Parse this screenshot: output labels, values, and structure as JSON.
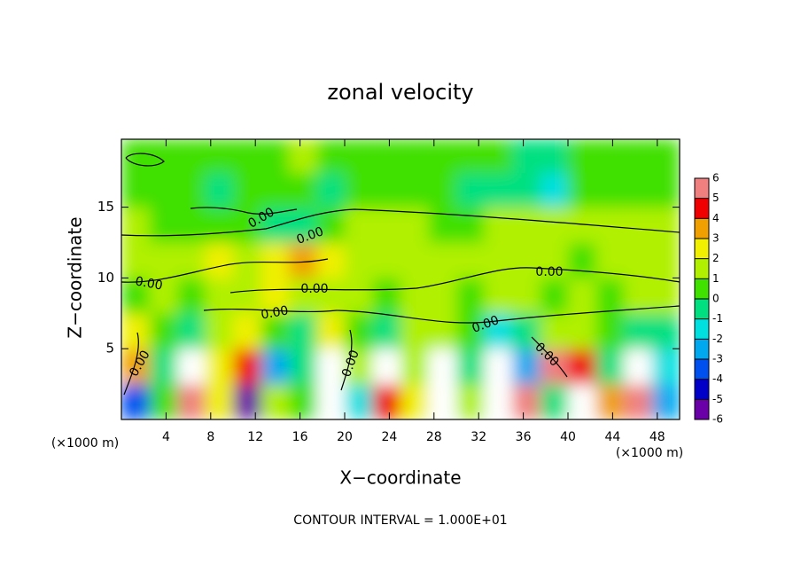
{
  "chart_data": {
    "type": "contourf",
    "title": "zonal velocity",
    "x_label": "X−coordinate",
    "y_label": "Z−coordinate",
    "x_unit": "(×1000 m)",
    "y_unit": "(×1000 m)",
    "note": "CONTOUR INTERVAL = 1.000E+01",
    "annotations": [
      "0.00",
      "0.00",
      "0.00",
      "0.00",
      "0.00",
      "0.00",
      "0.00",
      "0.00",
      "0.00",
      "0.00"
    ],
    "xlim": [
      0,
      50
    ],
    "ylim": [
      0,
      19.8
    ],
    "xticks": [
      4,
      8,
      12,
      16,
      20,
      24,
      28,
      32,
      36,
      40,
      44,
      48
    ],
    "yticks": [
      5,
      10,
      15
    ],
    "zticks": [
      -6,
      -5,
      -4,
      -3,
      -2,
      -1,
      0,
      1,
      2,
      3,
      4,
      5,
      6
    ],
    "colors": [
      "#6a00a8",
      "#0000c8",
      "#0050f0",
      "#00a8f0",
      "#00e0e0",
      "#00e080",
      "#40e000",
      "#b0f000",
      "#f0f000",
      "#f0a000",
      "#f00000",
      "#f08080"
    ],
    "out_of_range_color": "#ffffff",
    "x": [
      1.25,
      3.75,
      6.25,
      8.75,
      11.25,
      13.75,
      16.25,
      18.75,
      21.25,
      23.75,
      26.25,
      28.75,
      31.25,
      33.75,
      36.25,
      38.75,
      41.25,
      43.75,
      46.25,
      48.75
    ],
    "y": [
      1.25,
      3.75,
      6.25,
      8.75,
      11.25,
      13.75,
      16.25,
      18.65
    ],
    "z": [
      [
        -4,
        0,
        5,
        2,
        -6,
        1,
        0,
        -7,
        -2,
        4,
        2,
        -7,
        1,
        7,
        5,
        -1,
        -7,
        3,
        5,
        -3
      ],
      [
        3,
        -1,
        -7,
        2,
        4,
        -3,
        -1,
        8,
        1,
        -7,
        1,
        7,
        -1,
        -8,
        -3,
        6,
        4,
        -1,
        -7,
        -2
      ],
      [
        2,
        0,
        -1,
        1,
        2,
        0,
        -1,
        2,
        0,
        -1,
        1,
        1,
        0,
        -2,
        -1,
        1,
        1,
        0,
        -1,
        -1
      ],
      [
        0,
        1,
        0,
        1,
        1,
        2,
        1,
        1,
        1,
        0,
        1,
        1,
        0,
        1,
        1,
        0,
        1,
        0,
        1,
        1
      ],
      [
        1,
        1,
        1,
        2,
        1,
        2,
        3,
        2,
        1,
        1,
        1,
        1,
        1,
        1,
        1,
        1,
        0,
        1,
        1,
        1
      ],
      [
        1,
        0,
        0,
        0,
        0,
        -1,
        -1,
        0,
        1,
        1,
        1,
        0,
        0,
        1,
        1,
        1,
        1,
        1,
        1,
        1
      ],
      [
        0,
        0,
        0,
        -1,
        0,
        0,
        0,
        -1,
        0,
        0,
        0,
        0,
        -1,
        -1,
        -1,
        -2,
        0,
        0,
        0,
        0
      ],
      [
        0,
        0,
        0,
        0,
        0,
        0,
        1,
        0,
        0,
        0,
        0,
        0,
        0,
        0,
        -1,
        -1,
        0,
        0,
        0,
        0
      ]
    ]
  }
}
